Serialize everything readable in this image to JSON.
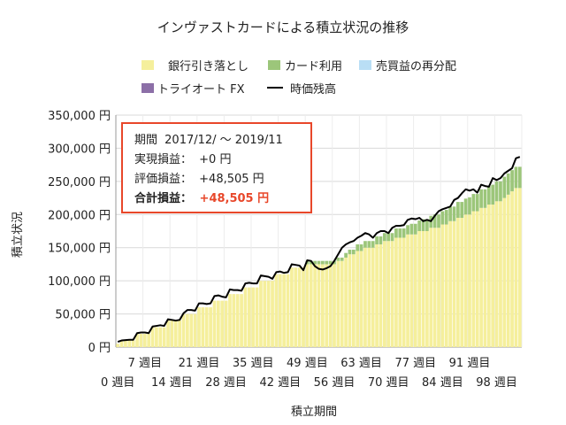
{
  "chart_data": {
    "type": "bar",
    "title": "インヴァストカードによる積立状況の推移",
    "xlabel": "積立期間",
    "ylabel": "積立状況",
    "yunit": "円",
    "ylim": [
      0,
      350000
    ],
    "yticks": [
      "0 円",
      "50,000 円",
      "100,000 円",
      "150,000 円",
      "200,000 円",
      "250,000 円",
      "300,000 円",
      "350,000 円"
    ],
    "grid": true,
    "legend_position": "top",
    "xtick_labels_top": [
      "7 週目",
      "21 週目",
      "35 週目",
      "49 週目",
      "63 週目",
      "77 週目",
      "91 週目"
    ],
    "xtick_labels_bottom": [
      "0 週目",
      "14 週目",
      "28 週目",
      "42 週目",
      "56 週目",
      "70 週目",
      "84 週目",
      "98 週目"
    ],
    "weeks_start": 0,
    "weeks_end": 104,
    "series": [
      {
        "name": "銀行引き落とし",
        "kind": "bar",
        "color": "#f5ef9c"
      },
      {
        "name": "カード利用",
        "kind": "bar",
        "color": "#9cc67a"
      },
      {
        "name": "売買益の再分配",
        "kind": "bar",
        "color": "#b9def5"
      },
      {
        "name": "トライオート FX",
        "kind": "bar",
        "color": "#8c6fa7"
      },
      {
        "name": "時価残高",
        "kind": "line",
        "color": "#000000"
      }
    ],
    "bank_debit_values": [
      5000,
      10000,
      10000,
      10000,
      10000,
      20000,
      20000,
      20000,
      20000,
      30000,
      30000,
      30000,
      30000,
      40000,
      40000,
      40000,
      40000,
      50000,
      50000,
      50000,
      50000,
      60000,
      60000,
      60000,
      60000,
      70000,
      70000,
      70000,
      70000,
      80000,
      80000,
      80000,
      80000,
      90000,
      90000,
      90000,
      90000,
      100000,
      100000,
      100000,
      100000,
      110000,
      110000,
      110000,
      110000,
      120000,
      120000,
      120000,
      120000,
      125000,
      125000,
      125000,
      125000,
      125000,
      125000,
      125000,
      125000,
      130000,
      130000,
      135000,
      140000,
      140000,
      145000,
      145000,
      150000,
      150000,
      150000,
      155000,
      155000,
      160000,
      160000,
      160000,
      165000,
      165000,
      165000,
      170000,
      170000,
      170000,
      175000,
      175000,
      175000,
      180000,
      180000,
      180000,
      185000,
      185000,
      190000,
      190000,
      195000,
      195000,
      200000,
      200000,
      205000,
      205000,
      210000,
      210000,
      215000,
      215000,
      220000,
      220000,
      225000,
      230000,
      235000,
      240000,
      240000
    ],
    "card_values": [
      0,
      0,
      0,
      0,
      0,
      0,
      0,
      0,
      0,
      0,
      0,
      0,
      0,
      0,
      0,
      0,
      0,
      0,
      0,
      0,
      0,
      0,
      0,
      0,
      0,
      0,
      0,
      0,
      0,
      0,
      0,
      0,
      0,
      0,
      0,
      0,
      0,
      0,
      0,
      0,
      0,
      0,
      0,
      0,
      0,
      0,
      0,
      0,
      0,
      5000,
      5000,
      5000,
      5000,
      5000,
      5000,
      5000,
      5000,
      5000,
      5000,
      7000,
      7000,
      7000,
      10000,
      10000,
      10000,
      10000,
      10000,
      12000,
      12000,
      12000,
      12000,
      12000,
      14000,
      14000,
      14000,
      14000,
      16000,
      16000,
      16000,
      18000,
      18000,
      18000,
      20000,
      20000,
      20000,
      22000,
      22000,
      22000,
      24000,
      24000,
      24000,
      26000,
      26000,
      26000,
      28000,
      28000,
      28000,
      30000,
      30000,
      30000,
      32000,
      32000,
      32000,
      32000,
      32000
    ],
    "reinvest_values": [
      0,
      0,
      0,
      0,
      0,
      0,
      0,
      0,
      0,
      0,
      0,
      0,
      0,
      0,
      0,
      0,
      0,
      0,
      0,
      0,
      0,
      0,
      0,
      0,
      0,
      0,
      0,
      0,
      0,
      0,
      0,
      0,
      0,
      0,
      0,
      0,
      0,
      0,
      0,
      0,
      0,
      0,
      0,
      0,
      0,
      0,
      0,
      0,
      0,
      0,
      0,
      0,
      0,
      0,
      0,
      0,
      0,
      0,
      0,
      0,
      0,
      0,
      0,
      0,
      0,
      0,
      0,
      0,
      0,
      0,
      0,
      0,
      0,
      0,
      0,
      0,
      0,
      0,
      0,
      0,
      0,
      0,
      0,
      0,
      0,
      0,
      0,
      0,
      0,
      0,
      0,
      0,
      0,
      0,
      0,
      0,
      0,
      0,
      0,
      0,
      0,
      0,
      0,
      0,
      0
    ],
    "fx_values": [
      0,
      0,
      0,
      0,
      0,
      0,
      0,
      0,
      0,
      0,
      0,
      0,
      0,
      0,
      0,
      0,
      0,
      0,
      0,
      0,
      0,
      0,
      0,
      0,
      0,
      0,
      0,
      0,
      0,
      0,
      0,
      0,
      0,
      0,
      0,
      0,
      0,
      0,
      0,
      0,
      0,
      0,
      0,
      0,
      0,
      0,
      0,
      0,
      0,
      0,
      0,
      0,
      0,
      0,
      0,
      0,
      0,
      0,
      0,
      0,
      0,
      0,
      0,
      0,
      0,
      0,
      0,
      0,
      0,
      0,
      0,
      0,
      0,
      0,
      0,
      0,
      0,
      0,
      0,
      0,
      0,
      0,
      0,
      0,
      0,
      0,
      0,
      0,
      0,
      0,
      0,
      0,
      0,
      0,
      0,
      0,
      0,
      0,
      0,
      0,
      0,
      0,
      0,
      0,
      0
    ],
    "market_value_values": [
      8000,
      10000,
      10500,
      11000,
      11000,
      21000,
      22000,
      22000,
      21000,
      31000,
      32000,
      33000,
      32000,
      42000,
      41000,
      40000,
      41000,
      51000,
      56000,
      56000,
      55000,
      66000,
      66000,
      65000,
      66000,
      77000,
      78000,
      76000,
      75000,
      87000,
      86000,
      86000,
      85000,
      96000,
      97000,
      96000,
      96000,
      108000,
      107000,
      106000,
      103000,
      113000,
      114000,
      112000,
      113000,
      125000,
      124000,
      123000,
      116000,
      131000,
      130000,
      122000,
      118000,
      117000,
      119000,
      122000,
      130000,
      140000,
      150000,
      155000,
      158000,
      160000,
      165000,
      168000,
      172000,
      170000,
      165000,
      172000,
      175000,
      175000,
      172000,
      180000,
      183000,
      183000,
      184000,
      192000,
      194000,
      193000,
      195000,
      190000,
      192000,
      190000,
      198000,
      205000,
      208000,
      210000,
      212000,
      222000,
      225000,
      232000,
      238000,
      236000,
      238000,
      233000,
      245000,
      243000,
      242000,
      255000,
      252000,
      255000,
      262000,
      266000,
      270000,
      285000,
      287000
    ],
    "annotation": {
      "period_label": "期間",
      "period_value": "2017/12/ ～ 2019/11",
      "realized_label": "実現損益：",
      "realized_value": "+0 円",
      "unrealized_label": "評価損益：",
      "unrealized_value": "+48,505 円",
      "total_label": "合計損益：",
      "total_value": "+48,505 円",
      "highlight_color": "#e8472a"
    }
  }
}
